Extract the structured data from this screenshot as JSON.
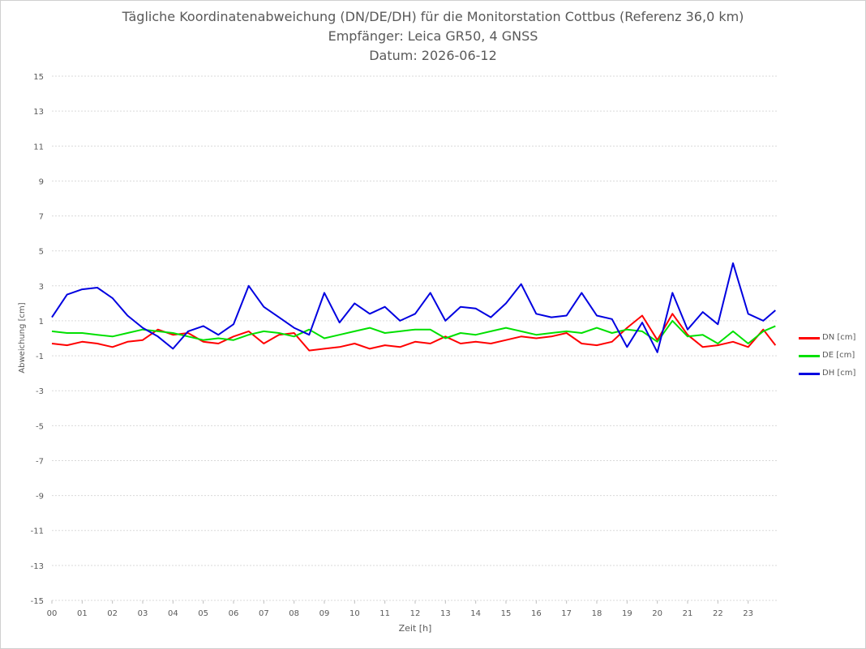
{
  "chart_data": {
    "type": "line",
    "title_lines": [
      "Tägliche Koordinatenabweichung (DN/DE/DH) für die Monitorstation Cottbus (Referenz 36,0 km)",
      "Empfänger: Leica GR50, 4 GNSS",
      "Datum: 2026-06-12"
    ],
    "xlabel": "Zeit [h]",
    "ylabel": "Abweichung [cm]",
    "xlim": [
      0,
      24
    ],
    "ylim": [
      -15,
      15
    ],
    "x_ticks": [
      "00",
      "01",
      "02",
      "03",
      "04",
      "05",
      "06",
      "07",
      "08",
      "09",
      "10",
      "11",
      "12",
      "13",
      "14",
      "15",
      "16",
      "17",
      "18",
      "19",
      "20",
      "21",
      "22",
      "23"
    ],
    "y_ticks": [
      15,
      13,
      11,
      9,
      7,
      5,
      3,
      1,
      -1,
      -3,
      -5,
      -7,
      -9,
      -11,
      -13,
      -15
    ],
    "grid": "horizontal dotted",
    "legend_position": "right",
    "x": [
      0.0,
      0.5,
      1.0,
      1.5,
      2.0,
      2.5,
      3.0,
      3.5,
      4.0,
      4.5,
      5.0,
      5.5,
      6.0,
      6.5,
      7.0,
      7.5,
      8.0,
      8.5,
      9.0,
      9.5,
      10.0,
      10.5,
      11.0,
      11.5,
      12.0,
      12.5,
      13.0,
      13.5,
      14.0,
      14.5,
      15.0,
      15.5,
      16.0,
      16.5,
      17.0,
      17.5,
      18.0,
      18.5,
      19.0,
      19.5,
      20.0,
      20.5,
      21.0,
      21.5,
      22.0,
      22.5,
      23.0,
      23.5,
      23.9
    ],
    "series": [
      {
        "name": "DN [cm]",
        "color": "#ff0000",
        "values": [
          -0.3,
          -0.4,
          -0.2,
          -0.3,
          -0.5,
          -0.2,
          -0.1,
          0.5,
          0.2,
          0.3,
          -0.2,
          -0.3,
          0.1,
          0.4,
          -0.3,
          0.2,
          0.3,
          -0.7,
          -0.6,
          -0.5,
          -0.3,
          -0.6,
          -0.4,
          -0.5,
          -0.2,
          -0.3,
          0.1,
          -0.3,
          -0.2,
          -0.3,
          -0.1,
          0.1,
          0.0,
          0.1,
          0.3,
          -0.3,
          -0.4,
          -0.2,
          0.6,
          1.3,
          -0.1,
          1.4,
          0.2,
          -0.5,
          -0.4,
          -0.2,
          -0.5,
          0.5,
          -0.4
        ]
      },
      {
        "name": "DE [cm]",
        "color": "#00e000",
        "values": [
          0.4,
          0.3,
          0.3,
          0.2,
          0.1,
          0.3,
          0.5,
          0.4,
          0.3,
          0.1,
          -0.1,
          0.0,
          -0.1,
          0.2,
          0.4,
          0.3,
          0.1,
          0.5,
          0.0,
          0.2,
          0.4,
          0.6,
          0.3,
          0.4,
          0.5,
          0.5,
          0.0,
          0.3,
          0.2,
          0.4,
          0.6,
          0.4,
          0.2,
          0.3,
          0.4,
          0.3,
          0.6,
          0.3,
          0.5,
          0.4,
          -0.2,
          1.0,
          0.1,
          0.2,
          -0.3,
          0.4,
          -0.3,
          0.4,
          0.7
        ]
      },
      {
        "name": "DH [cm]",
        "color": "#0000e0",
        "values": [
          1.2,
          2.5,
          2.8,
          2.9,
          2.3,
          1.3,
          0.6,
          0.1,
          -0.6,
          0.4,
          0.7,
          0.2,
          0.8,
          3.0,
          1.8,
          1.2,
          0.6,
          0.2,
          2.6,
          0.9,
          2.0,
          1.4,
          1.8,
          1.0,
          1.4,
          2.6,
          1.0,
          1.8,
          1.7,
          1.2,
          2.0,
          3.1,
          1.4,
          1.2,
          1.3,
          2.6,
          1.3,
          1.1,
          -0.5,
          0.9,
          -0.8,
          2.6,
          0.5,
          1.5,
          0.8,
          4.3,
          1.4,
          1.0,
          1.6
        ]
      }
    ]
  }
}
